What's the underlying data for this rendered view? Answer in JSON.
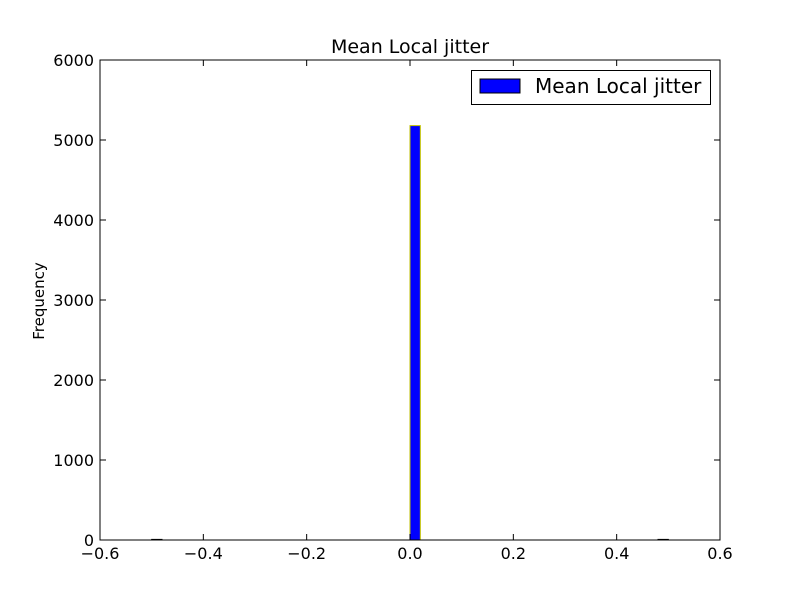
{
  "chart_data": {
    "type": "bar",
    "title": "Mean Local jitter",
    "xlabel": "",
    "ylabel": "Frequency",
    "xlim": [
      -0.6,
      0.6
    ],
    "ylim": [
      0,
      6000
    ],
    "xticks": [
      -0.6,
      -0.4,
      -0.2,
      0.0,
      0.2,
      0.4,
      0.6
    ],
    "xtick_labels": [
      "−0.6",
      "−0.4",
      "−0.2",
      "0.0",
      "0.2",
      "0.4",
      "0.6"
    ],
    "yticks": [
      0,
      1000,
      2000,
      3000,
      4000,
      5000,
      6000
    ],
    "ytick_labels": [
      "0",
      "1000",
      "2000",
      "3000",
      "4000",
      "5000",
      "6000"
    ],
    "grid": false,
    "legend": {
      "position": "top-right",
      "entries": [
        "Mean Local jitter"
      ]
    },
    "series": [
      {
        "name": "Mean Local jitter",
        "color": "#0000ff",
        "edge_color": "#bfbf00",
        "bins": [
          {
            "x0": -0.5,
            "x1": -0.48,
            "value": 0
          },
          {
            "x0": 0.0,
            "x1": 0.02,
            "value": 5180
          },
          {
            "x0": 0.48,
            "x1": 0.5,
            "value": 0
          }
        ]
      }
    ]
  }
}
